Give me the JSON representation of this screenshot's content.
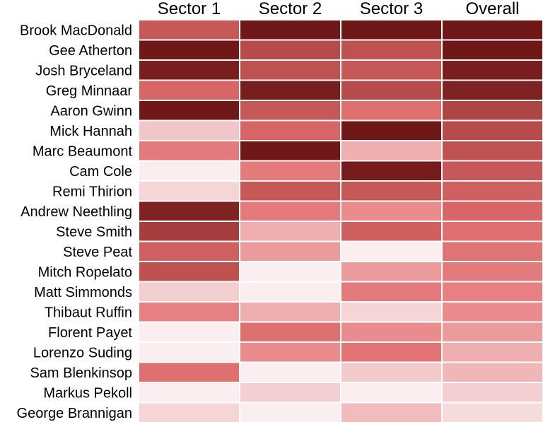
{
  "chart_data": {
    "type": "heatmap",
    "columns": [
      "Sector 1",
      "Sector 2",
      "Sector 3",
      "Overall"
    ],
    "rows": [
      "Brook MacDonald",
      "Gee Atherton",
      "Josh Bryceland",
      "Greg Minnaar",
      "Aaron Gwinn",
      "Mick Hannah",
      "Marc Beaumont",
      "Cam Cole",
      "Remi Thirion",
      "Andrew Neethling",
      "Steve Smith",
      "Steve Peat",
      "Mitch Ropelato",
      "Matt Simmonds",
      "Thibaut Ruffin",
      "Florent Payet",
      "Lorenzo Suding",
      "Sam Blenkinsop",
      "Markus Pekoll",
      "George Brannigan"
    ],
    "values": [
      [
        7,
        20,
        20,
        20
      ],
      [
        20,
        9,
        8,
        20
      ],
      [
        18,
        8,
        7,
        18
      ],
      [
        5,
        18,
        9,
        17
      ],
      [
        20,
        7,
        4,
        10
      ],
      [
        0.5,
        5,
        20,
        9
      ],
      [
        3,
        20,
        1,
        8
      ],
      [
        0,
        3,
        19,
        7
      ],
      [
        0.2,
        7,
        7,
        6
      ],
      [
        17,
        3,
        2,
        5
      ],
      [
        11,
        1,
        6,
        4
      ],
      [
        6,
        1.5,
        0,
        3.5
      ],
      [
        8,
        0,
        1.5,
        3
      ],
      [
        0.3,
        0,
        3,
        2.5
      ],
      [
        2.5,
        1,
        0.2,
        2
      ],
      [
        0,
        4,
        2,
        1.5
      ],
      [
        0,
        2,
        3.5,
        1
      ],
      [
        4,
        0,
        0.4,
        0.8
      ],
      [
        0,
        0.3,
        0,
        0.3
      ],
      [
        0.2,
        0,
        0.7,
        0.1
      ]
    ],
    "color_scale": {
      "low": "#fbeef0",
      "stops": [
        "#fbeef0",
        "#f2c4c6",
        "#e98486",
        "#d96666",
        "#b84c4c",
        "#8e2d2d",
        "#701818"
      ],
      "high": "#701818"
    },
    "legend": "none",
    "grid": false
  }
}
